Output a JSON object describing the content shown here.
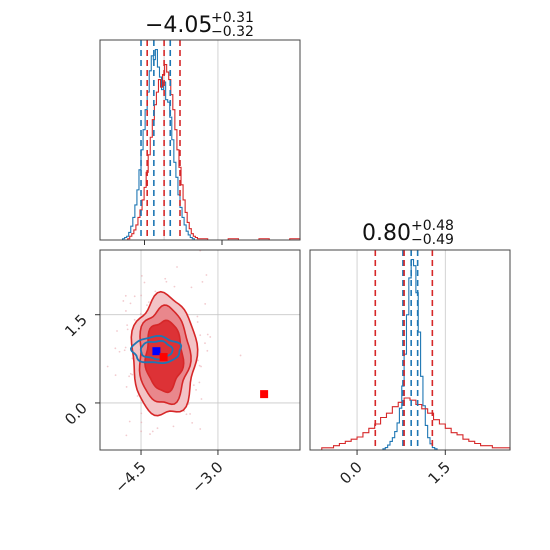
{
  "colors": {
    "blue": "#1f77b4",
    "red": "#d62728",
    "marker_blue": "#0000ff",
    "marker_red": "#ff0000",
    "grid": "#c8c8c8"
  },
  "panels": {
    "top_left": {
      "title_value": "−4.05",
      "title_plus": "+0.31",
      "title_minus": "−0.32"
    },
    "bottom_right": {
      "title_value": "0.80",
      "title_plus": "+0.48",
      "title_minus": "−0.49"
    }
  },
  "chart_data": {
    "type": "corner",
    "parameters": [
      "p0",
      "p1"
    ],
    "x_param_ticks": [
      {
        "value": -4.5,
        "label": "−4.5"
      },
      {
        "value": -3.0,
        "label": "−3.0"
      }
    ],
    "y_param_ticks": [
      {
        "value": 1.5,
        "label": "1.5"
      },
      {
        "value": 0.0,
        "label": "0.0"
      }
    ],
    "p1_ticks": [
      {
        "value": 0.0,
        "label": "0.0"
      },
      {
        "value": 1.5,
        "label": "1.5"
      }
    ],
    "p0_range": [
      -5.3,
      -1.4
    ],
    "p1_range": [
      -0.8,
      2.6
    ],
    "marginal_p0": {
      "grid_at": [
        -4.05,
        -3.0
      ],
      "blue_quantiles": [
        -4.5,
        -4.25,
        -3.93
      ],
      "red_quantiles": [
        -4.38,
        -4.05,
        -3.74
      ],
      "blue_hist": [
        [
          -5.3,
          0
        ],
        [
          -4.9,
          0
        ],
        [
          -4.86,
          1
        ],
        [
          -4.82,
          2
        ],
        [
          -4.78,
          3
        ],
        [
          -4.74,
          6
        ],
        [
          -4.7,
          11
        ],
        [
          -4.66,
          18
        ],
        [
          -4.62,
          28
        ],
        [
          -4.58,
          40
        ],
        [
          -4.54,
          56
        ],
        [
          -4.5,
          72
        ],
        [
          -4.46,
          88
        ],
        [
          -4.42,
          104
        ],
        [
          -4.38,
          118
        ],
        [
          -4.34,
          135
        ],
        [
          -4.3,
          147
        ],
        [
          -4.26,
          144
        ],
        [
          -4.22,
          152
        ],
        [
          -4.18,
          138
        ],
        [
          -4.14,
          130
        ],
        [
          -4.1,
          120
        ],
        [
          -4.06,
          126
        ],
        [
          -4.02,
          112
        ],
        [
          -3.98,
          110
        ],
        [
          -3.94,
          98
        ],
        [
          -3.9,
          80
        ],
        [
          -3.86,
          62
        ],
        [
          -3.82,
          50
        ],
        [
          -3.78,
          36
        ],
        [
          -3.74,
          26
        ],
        [
          -3.7,
          18
        ],
        [
          -3.66,
          12
        ],
        [
          -3.62,
          7
        ],
        [
          -3.58,
          4
        ],
        [
          -3.54,
          2
        ],
        [
          -3.5,
          1
        ],
        [
          -3.46,
          0
        ]
      ],
      "red_hist": [
        [
          -5.3,
          0
        ],
        [
          -4.8,
          0
        ],
        [
          -4.76,
          1
        ],
        [
          -4.72,
          3
        ],
        [
          -4.68,
          5
        ],
        [
          -4.64,
          8
        ],
        [
          -4.6,
          12
        ],
        [
          -4.56,
          18
        ],
        [
          -4.52,
          24
        ],
        [
          -4.48,
          32
        ],
        [
          -4.44,
          42
        ],
        [
          -4.4,
          54
        ],
        [
          -4.36,
          68
        ],
        [
          -4.32,
          82
        ],
        [
          -4.28,
          96
        ],
        [
          -4.24,
          108
        ],
        [
          -4.2,
          118
        ],
        [
          -4.16,
          128
        ],
        [
          -4.12,
          122
        ],
        [
          -4.08,
          132
        ],
        [
          -4.04,
          140
        ],
        [
          -4.0,
          134
        ],
        [
          -3.96,
          128
        ],
        [
          -3.92,
          116
        ],
        [
          -3.88,
          104
        ],
        [
          -3.84,
          88
        ],
        [
          -3.8,
          72
        ],
        [
          -3.76,
          58
        ],
        [
          -3.72,
          44
        ],
        [
          -3.68,
          32
        ],
        [
          -3.64,
          22
        ],
        [
          -3.6,
          14
        ],
        [
          -3.56,
          9
        ],
        [
          -3.52,
          5
        ],
        [
          -3.48,
          3
        ],
        [
          -3.44,
          2
        ],
        [
          -3.4,
          1
        ],
        [
          -3.2,
          0
        ],
        [
          -2.8,
          1
        ],
        [
          -2.6,
          0
        ],
        [
          -2.2,
          1
        ],
        [
          -2.0,
          0
        ],
        [
          -1.6,
          1
        ],
        [
          -1.4,
          0
        ]
      ]
    },
    "marginal_p1": {
      "grid_at": [
        0.0,
        1.5
      ],
      "blue_quantiles": [
        0.78,
        0.92,
        1.03
      ],
      "red_quantiles": [
        0.31,
        0.8,
        1.28
      ],
      "blue_hist": [
        [
          -0.8,
          0
        ],
        [
          0.4,
          0
        ],
        [
          0.44,
          1
        ],
        [
          0.48,
          2
        ],
        [
          0.52,
          4
        ],
        [
          0.56,
          7
        ],
        [
          0.6,
          10
        ],
        [
          0.64,
          15
        ],
        [
          0.68,
          22
        ],
        [
          0.72,
          34
        ],
        [
          0.76,
          52
        ],
        [
          0.8,
          78
        ],
        [
          0.84,
          110
        ],
        [
          0.88,
          140
        ],
        [
          0.92,
          155
        ],
        [
          0.96,
          150
        ],
        [
          1.0,
          128
        ],
        [
          1.04,
          96
        ],
        [
          1.08,
          60
        ],
        [
          1.12,
          36
        ],
        [
          1.16,
          20
        ],
        [
          1.2,
          10
        ],
        [
          1.24,
          5
        ],
        [
          1.28,
          2
        ],
        [
          1.32,
          1
        ],
        [
          1.36,
          0
        ],
        [
          2.6,
          0
        ]
      ],
      "red_hist": [
        [
          -0.8,
          0
        ],
        [
          -0.6,
          1
        ],
        [
          -0.5,
          1
        ],
        [
          -0.4,
          2
        ],
        [
          -0.3,
          3
        ],
        [
          -0.2,
          4
        ],
        [
          -0.1,
          5
        ],
        [
          0.0,
          6
        ],
        [
          0.1,
          8
        ],
        [
          0.2,
          10
        ],
        [
          0.3,
          12
        ],
        [
          0.4,
          15
        ],
        [
          0.5,
          17
        ],
        [
          0.6,
          20
        ],
        [
          0.7,
          22
        ],
        [
          0.8,
          24
        ],
        [
          0.9,
          23
        ],
        [
          1.0,
          21
        ],
        [
          1.1,
          19
        ],
        [
          1.2,
          17
        ],
        [
          1.3,
          14
        ],
        [
          1.4,
          12
        ],
        [
          1.5,
          10
        ],
        [
          1.6,
          8
        ],
        [
          1.7,
          7
        ],
        [
          1.8,
          5
        ],
        [
          1.9,
          4
        ],
        [
          2.0,
          3
        ],
        [
          2.1,
          2
        ],
        [
          2.2,
          2
        ],
        [
          2.3,
          1
        ],
        [
          2.4,
          1
        ],
        [
          2.6,
          0
        ]
      ]
    },
    "joint": {
      "red_contours": [
        {
          "cx": -4.05,
          "cy": 0.8,
          "rx": 1.25,
          "ry": 2.05,
          "level": 0.39
        },
        {
          "cx": -4.05,
          "cy": 0.8,
          "rx": 0.98,
          "ry": 1.65,
          "level": 0.68
        },
        {
          "cx": -4.05,
          "cy": 0.8,
          "rx": 0.72,
          "ry": 1.2,
          "level": 0.86
        }
      ],
      "blue_contours": [
        {
          "cx": -4.2,
          "cy": 0.9,
          "rx": 0.95,
          "ry": 0.45
        },
        {
          "cx": -4.2,
          "cy": 0.9,
          "rx": 0.62,
          "ry": 0.3
        }
      ],
      "markers": [
        {
          "x": -4.2,
          "y": 0.88,
          "color": "marker_blue"
        },
        {
          "x": -4.06,
          "y": 0.78,
          "color": "marker_red"
        },
        {
          "x": -2.1,
          "y": 0.15,
          "color": "marker_red"
        }
      ]
    }
  }
}
